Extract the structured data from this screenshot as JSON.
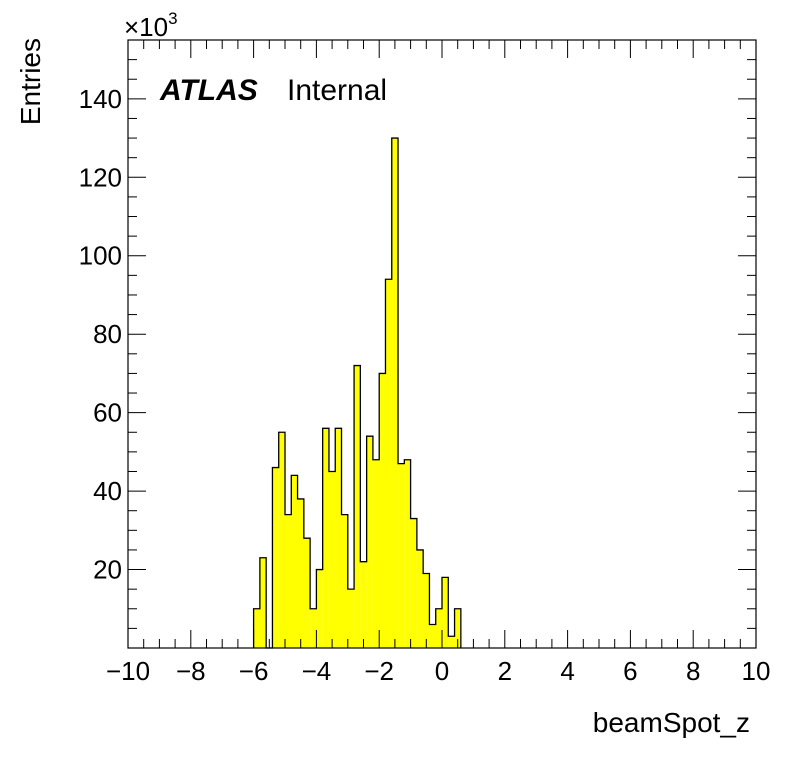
{
  "chart_data": {
    "type": "bar",
    "xlabel": "beamSpot_z",
    "ylabel": "Entries",
    "y_multiplier_base": "×10",
    "y_multiplier_exp": "3",
    "label_bold": "ATLAS",
    "label_status": "Internal",
    "xlim": [
      -10,
      10
    ],
    "ylim": [
      0,
      155
    ],
    "bin_width": 0.2,
    "x_ticks": [
      -10,
      -8,
      -6,
      -4,
      -2,
      0,
      2,
      4,
      6,
      8,
      10
    ],
    "x_tick_labels": [
      "−10",
      "−8",
      "−6",
      "−4",
      "−2",
      "0",
      "2",
      "4",
      "6",
      "8",
      "10"
    ],
    "y_ticks": [
      20,
      40,
      60,
      80,
      100,
      120,
      140
    ],
    "y_tick_labels": [
      "20",
      "40",
      "60",
      "80",
      "100",
      "120",
      "140"
    ],
    "fill_color": "#ffff00",
    "line_color": "#000000",
    "bins": [
      {
        "x": -6.0,
        "y": 10
      },
      {
        "x": -5.8,
        "y": 23
      },
      {
        "x": -5.6,
        "y": 0
      },
      {
        "x": -5.4,
        "y": 46
      },
      {
        "x": -5.2,
        "y": 55
      },
      {
        "x": -5.0,
        "y": 34
      },
      {
        "x": -4.8,
        "y": 44
      },
      {
        "x": -4.6,
        "y": 38
      },
      {
        "x": -4.4,
        "y": 28
      },
      {
        "x": -4.2,
        "y": 10
      },
      {
        "x": -4.0,
        "y": 20
      },
      {
        "x": -3.8,
        "y": 56
      },
      {
        "x": -3.6,
        "y": 45
      },
      {
        "x": -3.4,
        "y": 56
      },
      {
        "x": -3.2,
        "y": 34
      },
      {
        "x": -3.0,
        "y": 15
      },
      {
        "x": -2.8,
        "y": 72
      },
      {
        "x": -2.6,
        "y": 22
      },
      {
        "x": -2.4,
        "y": 54
      },
      {
        "x": -2.2,
        "y": 48
      },
      {
        "x": -2.0,
        "y": 70
      },
      {
        "x": -1.8,
        "y": 94
      },
      {
        "x": -1.6,
        "y": 130
      },
      {
        "x": -1.4,
        "y": 47
      },
      {
        "x": -1.2,
        "y": 48
      },
      {
        "x": -1.0,
        "y": 33
      },
      {
        "x": -0.8,
        "y": 25
      },
      {
        "x": -0.6,
        "y": 19
      },
      {
        "x": -0.4,
        "y": 6
      },
      {
        "x": -0.2,
        "y": 10
      },
      {
        "x": 0.0,
        "y": 18
      },
      {
        "x": 0.2,
        "y": 3
      },
      {
        "x": 0.4,
        "y": 10
      }
    ]
  }
}
